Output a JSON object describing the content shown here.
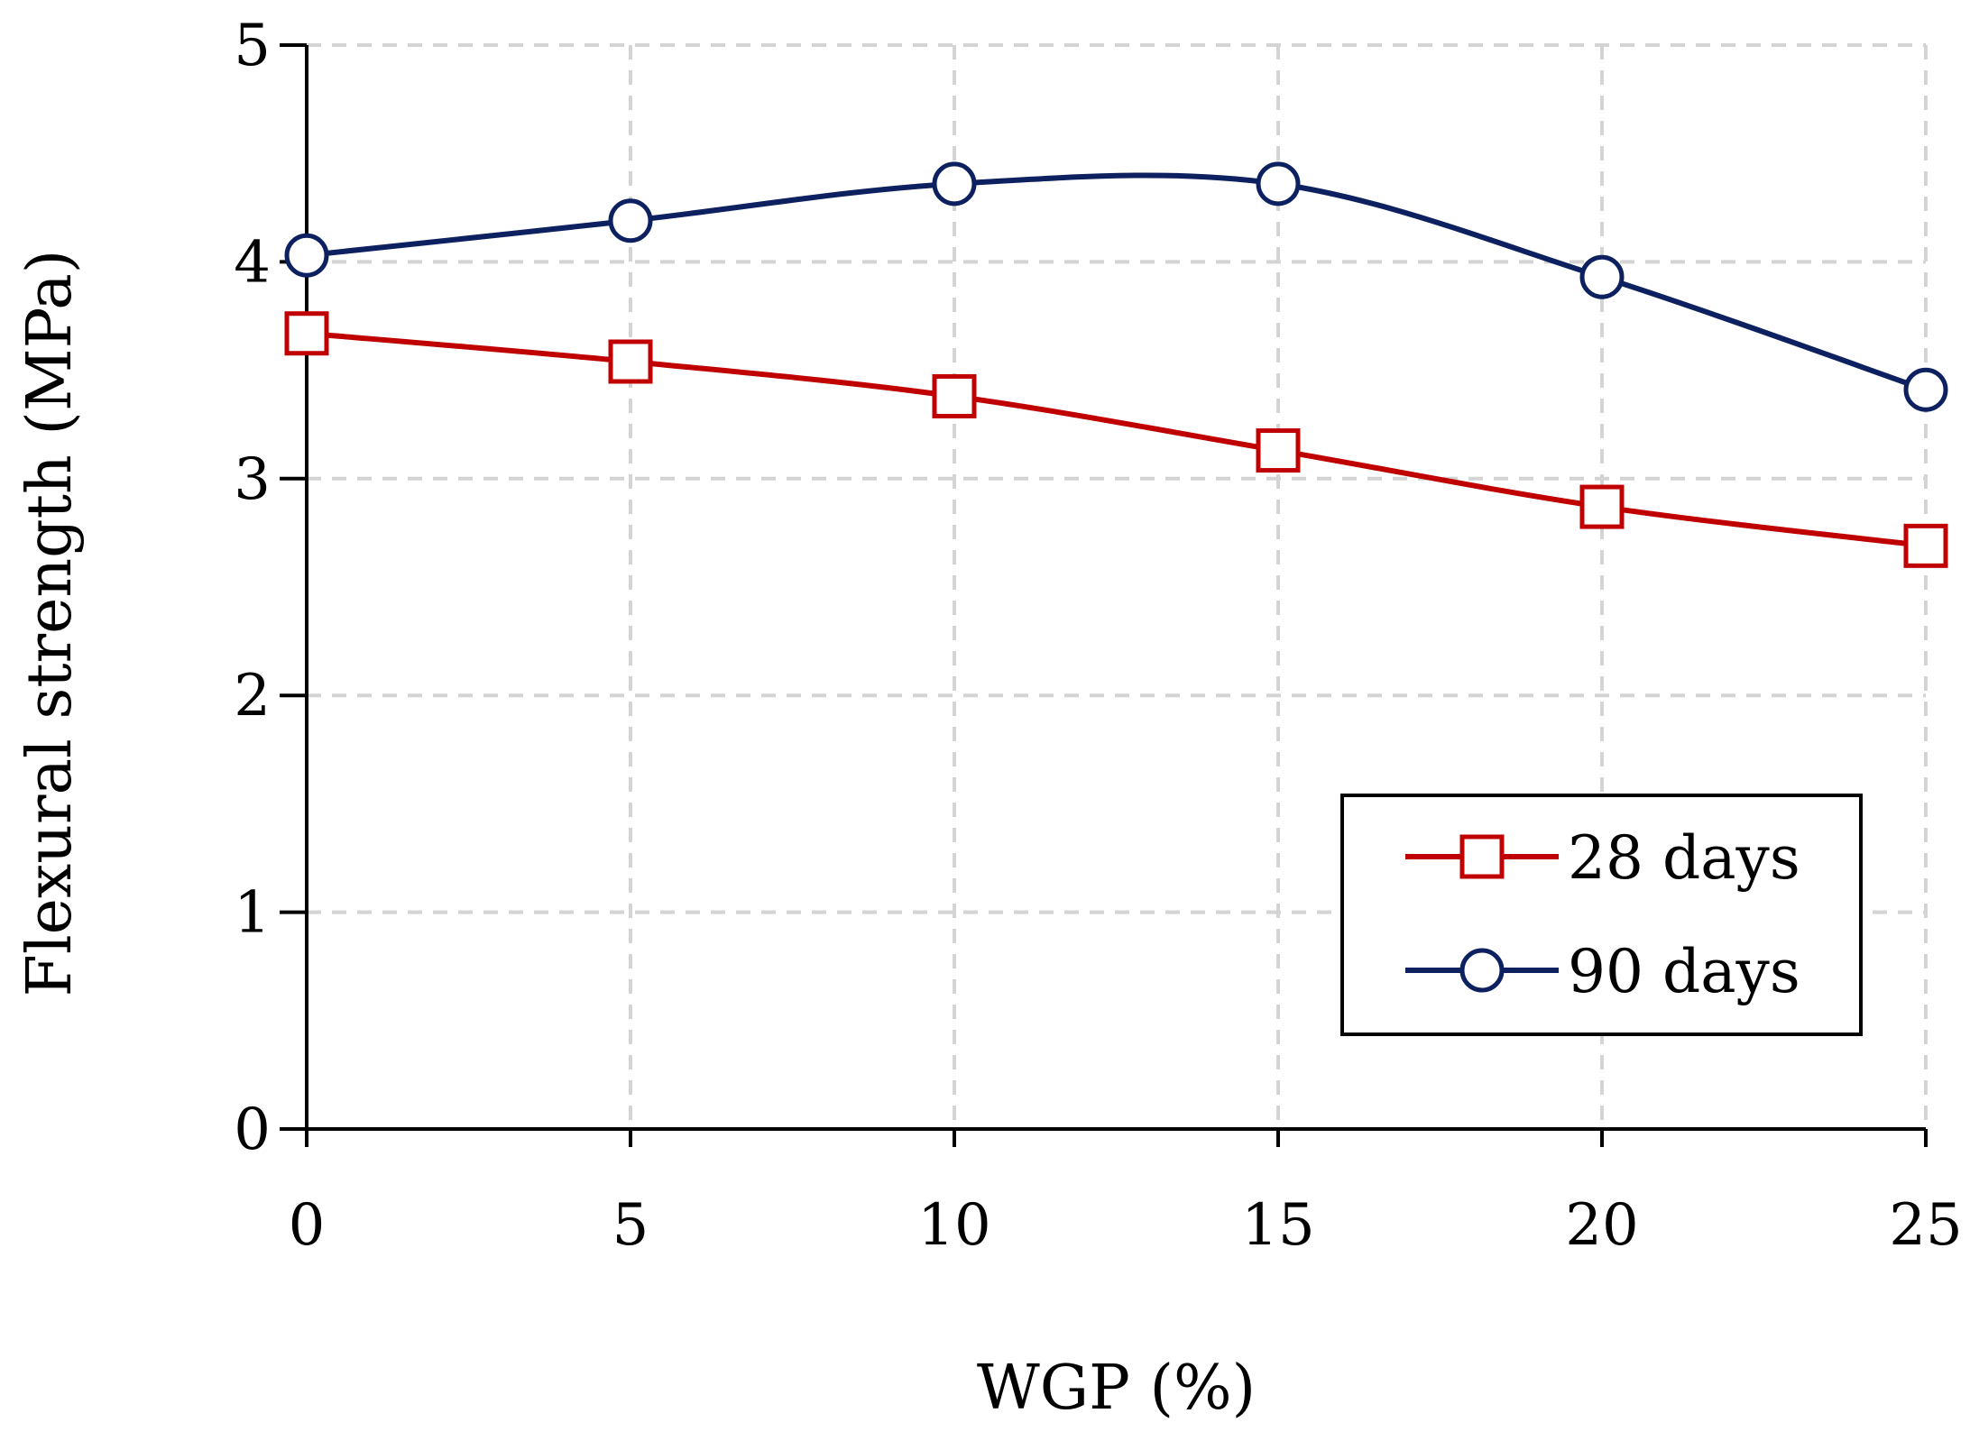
{
  "chart_data": {
    "type": "line",
    "xlabel": "WGP (%)",
    "ylabel": "Flexural strength (MPa)",
    "xlim": [
      0,
      25
    ],
    "ylim": [
      0,
      5
    ],
    "x_ticks": [
      "0",
      "5",
      "10",
      "15",
      "20",
      "25"
    ],
    "y_ticks": [
      "0",
      "1",
      "2",
      "3",
      "4",
      "5"
    ],
    "x": [
      0,
      5,
      10,
      15,
      20,
      25
    ],
    "grid": true,
    "legend_position": "bottom-right",
    "series": [
      {
        "name": "28 days",
        "values": [
          3.67,
          3.54,
          3.38,
          3.13,
          2.87,
          2.69
        ],
        "color": "#c00000",
        "marker": "square"
      },
      {
        "name": "90 days",
        "values": [
          4.03,
          4.19,
          4.36,
          4.36,
          3.93,
          3.41
        ],
        "color": "#0d2160",
        "marker": "circle"
      }
    ]
  }
}
